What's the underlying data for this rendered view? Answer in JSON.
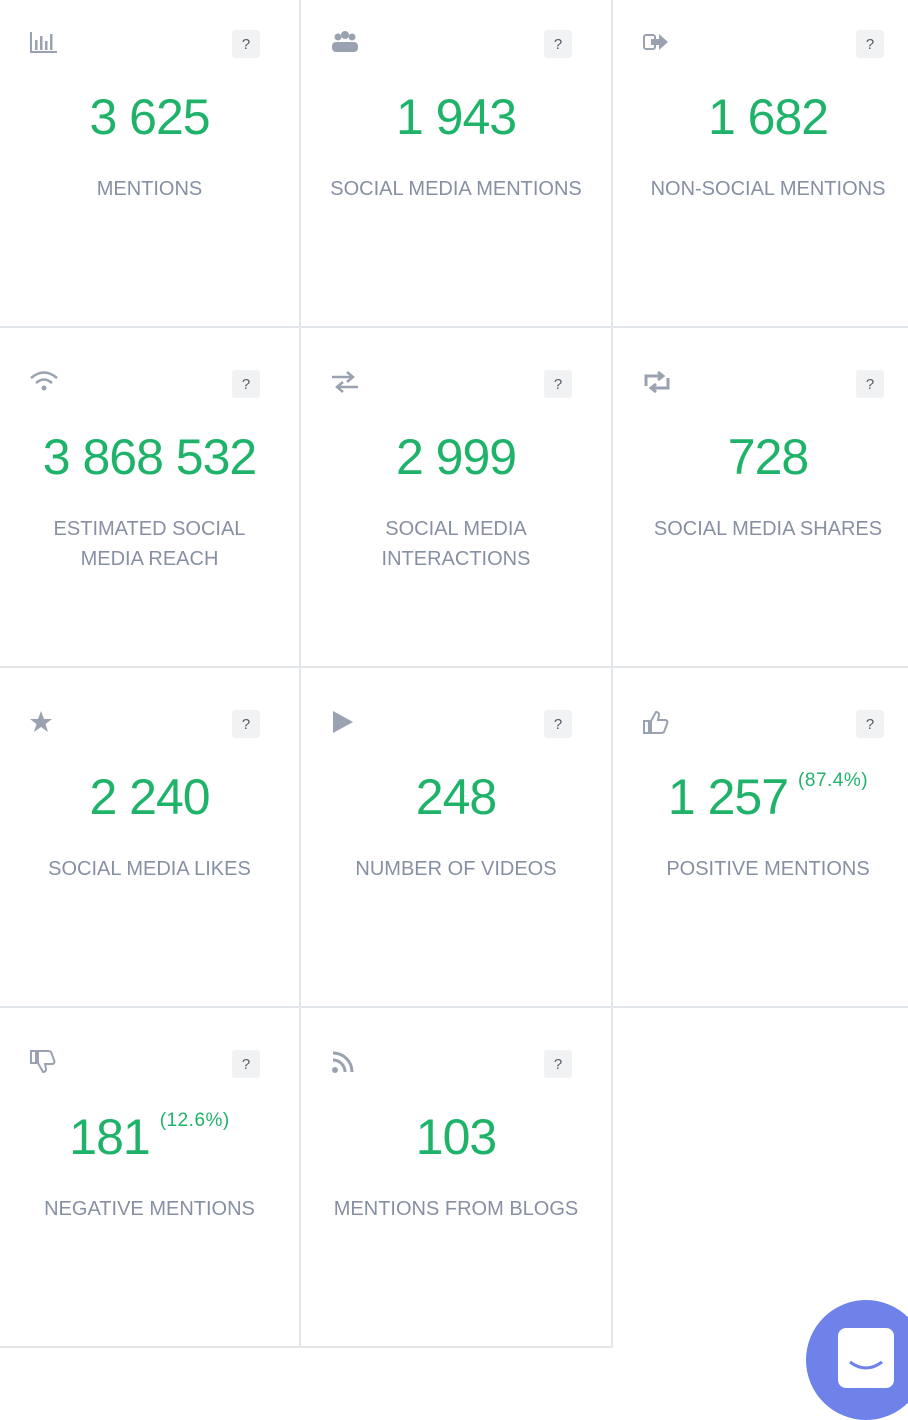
{
  "help_label": "?",
  "cards": [
    {
      "value": "3 625",
      "label": "MENTIONS"
    },
    {
      "value": "1 943",
      "label": "SOCIAL MEDIA MENTIONS"
    },
    {
      "value": "1 682",
      "label": "NON-SOCIAL MENTIONS"
    },
    {
      "value": "3 868 532",
      "label": "ESTIMATED SOCIAL MEDIA REACH"
    },
    {
      "value": "2 999",
      "label": "SOCIAL MEDIA INTERACTIONS"
    },
    {
      "value": "728",
      "label": "SOCIAL MEDIA SHARES"
    },
    {
      "value": "2 240",
      "label": "SOCIAL MEDIA LIKES"
    },
    {
      "value": "248",
      "label": "NUMBER OF VIDEOS"
    },
    {
      "value": "1 257",
      "percent": "(87.4%)",
      "label": "POSITIVE MENTIONS"
    },
    {
      "value": "181",
      "percent": "(12.6%)",
      "label": "NEGATIVE MENTIONS"
    },
    {
      "value": "103",
      "label": "MENTIONS FROM BLOGS"
    }
  ]
}
